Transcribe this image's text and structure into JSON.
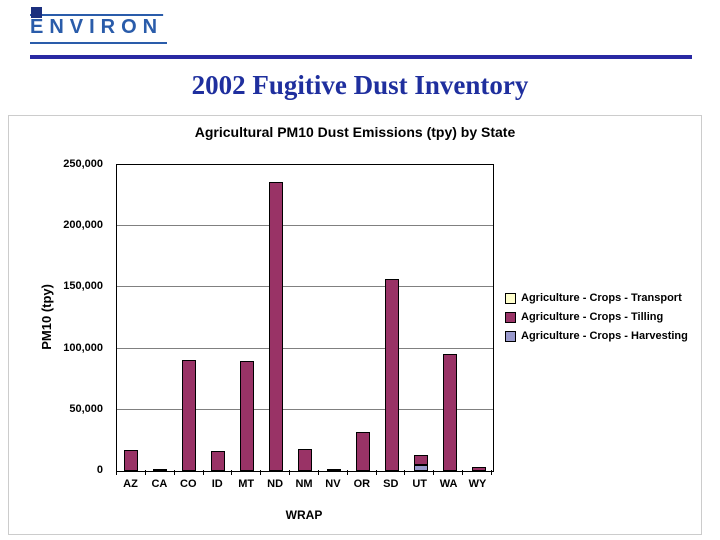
{
  "slide": {
    "logo": "ENVIRON",
    "title": "2002 Fugitive Dust Inventory"
  },
  "colors": {
    "logo_blue": "#2a5caa",
    "rule_blue": "#2929a3",
    "title_blue": "#1f2f9e",
    "transport": "#FFFFCC",
    "tilling": "#993366",
    "harvesting": "#9999CC"
  },
  "chart_data": {
    "type": "bar",
    "stacked": true,
    "title": "Agricultural PM10 Dust Emissions (tpy) by State",
    "xlabel": "WRAP",
    "ylabel": "PM10 (tpy)",
    "ylim": [
      0,
      250000
    ],
    "yticks": [
      0,
      50000,
      100000,
      150000,
      200000,
      250000
    ],
    "ytick_labels": [
      "0",
      "50,000",
      "100,000",
      "150,000",
      "200,000",
      "250,000"
    ],
    "grid": true,
    "legend_position": "right",
    "categories": [
      "AZ",
      "CA",
      "CO",
      "ID",
      "MT",
      "ND",
      "NM",
      "NV",
      "OR",
      "SD",
      "UT",
      "WA",
      "WY"
    ],
    "series": [
      {
        "name": "Agriculture - Crops - Transport",
        "color": "#FFFFCC",
        "values": [
          0,
          0,
          0,
          0,
          0,
          0,
          0,
          0,
          0,
          0,
          0,
          0,
          0
        ]
      },
      {
        "name": "Agriculture - Crops - Tilling",
        "color": "#993366",
        "values": [
          17000,
          1000,
          91000,
          16000,
          90000,
          236000,
          18000,
          1500,
          32000,
          157000,
          8000,
          96000,
          3000
        ]
      },
      {
        "name": "Agriculture - Crops - Harvesting",
        "color": "#9999CC",
        "values": [
          0,
          0,
          0,
          0,
          0,
          0,
          0,
          0,
          0,
          0,
          5000,
          0,
          0
        ]
      }
    ],
    "stack_bottom_to_top": [
      "Agriculture - Crops - Harvesting",
      "Agriculture - Crops - Tilling",
      "Agriculture - Crops - Transport"
    ]
  }
}
